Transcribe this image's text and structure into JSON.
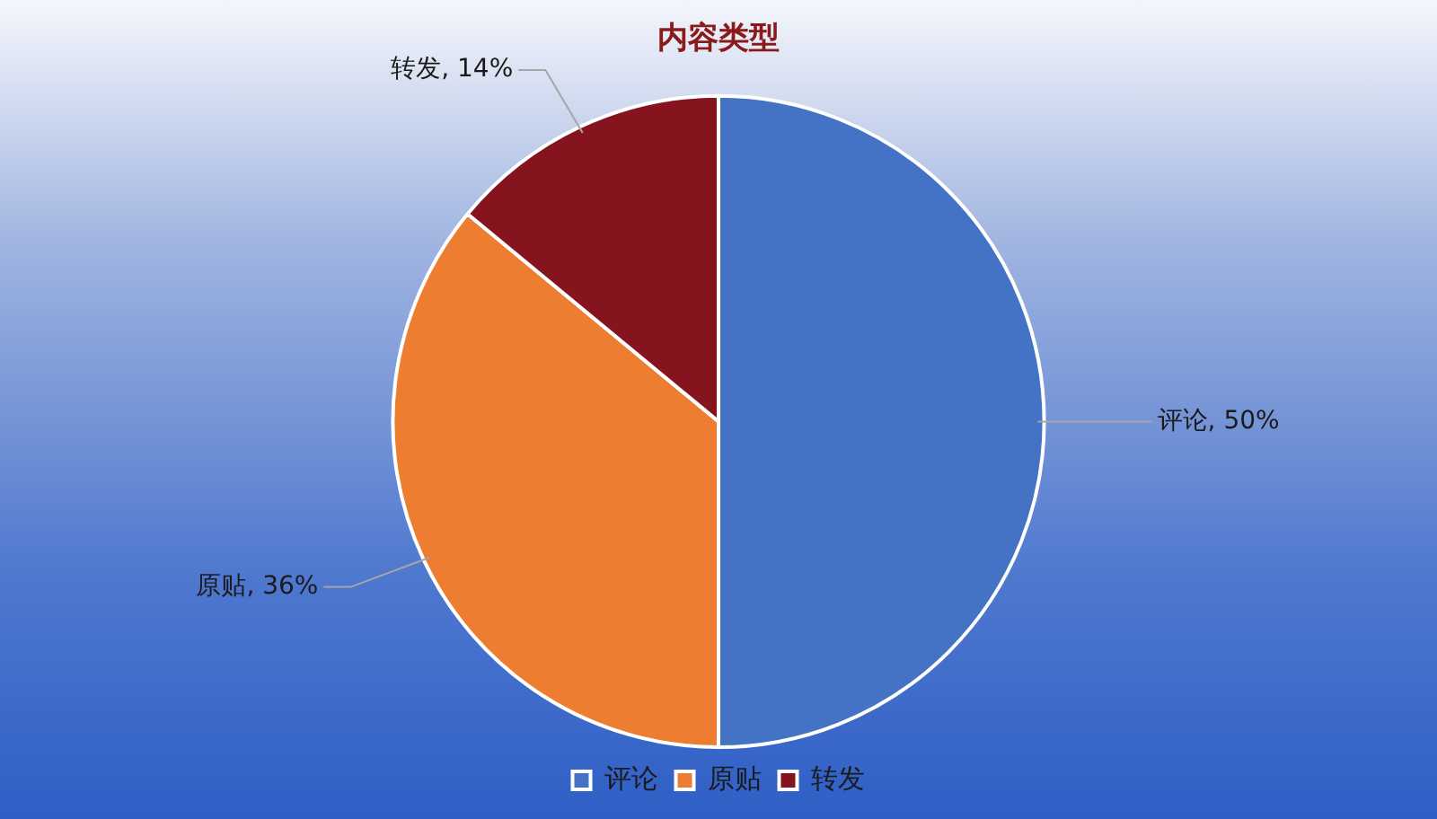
{
  "chart_data": {
    "type": "pie",
    "title": "内容类型",
    "categories": [
      "评论",
      "原贴",
      "转发"
    ],
    "values": [
      50,
      36,
      14
    ],
    "colors": [
      "#4472c4",
      "#ed7d31",
      "#86141f"
    ],
    "value_labels": [
      "评论, 50%",
      "原贴, 36%",
      "转发, 14%"
    ],
    "legend": "bottom"
  }
}
